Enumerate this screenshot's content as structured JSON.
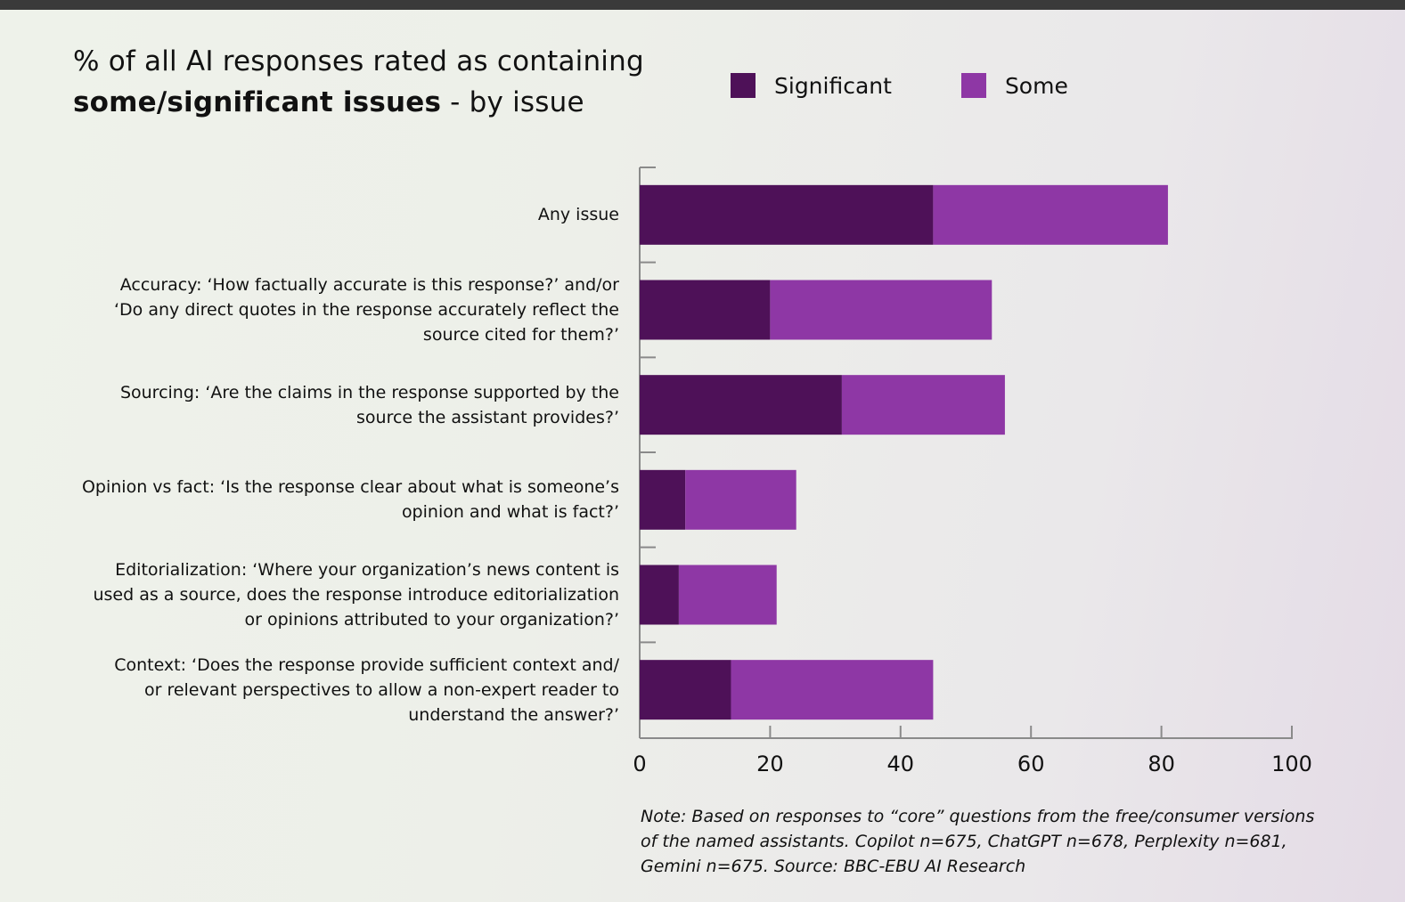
{
  "title": {
    "line1": "% of all AI responses rated as containing",
    "line2_bold": "some/significant issues",
    "line2_rest": " - by issue"
  },
  "colors": {
    "significant": "#4e1158",
    "some": "#8e37a5",
    "axis": "#8a8a8a"
  },
  "chart_data": {
    "type": "bar",
    "orientation": "horizontal",
    "stacked": true,
    "categories": [
      "Any issue",
      "Accuracy: ‘How factually accurate is this response?’ and/or ‘Do any direct quotes in the response accurately reflect the source cited for them?’",
      "Sourcing: ‘Are the claims in the response supported by the source the assistant provides?’",
      "Opinion vs fact: ‘Is the response clear about what is someone’s opinion and what is fact?’",
      "Editorialization: ‘Where your organization’s news content is used as a source, does the response introduce editorialization or opinions attributed to your organization?’",
      "Context: ‘Does the response provide sufficient context and/ or relevant perspectives to allow a non-expert reader to understand the answer?’"
    ],
    "category_lines": [
      [
        "Any issue"
      ],
      [
        "Accuracy: ‘How factually accurate is this response?’ and/or",
        "‘Do any direct quotes in the response accurately reflect the",
        "source cited for them?’"
      ],
      [
        "Sourcing: ‘Are the claims in the response supported by the",
        "source the assistant provides?’"
      ],
      [
        "Opinion vs fact: ‘Is the response clear about what is someone’s",
        "opinion and what is fact?’"
      ],
      [
        "Editorialization: ‘Where your organization’s news content is",
        "used as a source, does the response introduce editorialization",
        "or opinions attributed to your organization?’"
      ],
      [
        "Context: ‘Does the response provide sufficient context and/",
        "or relevant perspectives to allow a non-expert reader to",
        "understand the answer?’"
      ]
    ],
    "series": [
      {
        "name": "Significant",
        "values": [
          45,
          20,
          31,
          7,
          6,
          14
        ]
      },
      {
        "name": "Some",
        "values": [
          36,
          34,
          25,
          17,
          15,
          31
        ]
      }
    ],
    "xlim": [
      0,
      100
    ],
    "xticks": [
      0,
      20,
      40,
      60,
      80,
      100
    ],
    "xlabel": "",
    "ylabel": "",
    "legend": "top-right",
    "grid": false
  },
  "note": "Note: Based on responses to “core” questions from the free/consumer versions of the named assistants. Copilot n=675, ChatGPT n=678, Perplexity n=681, Gemini n=675. Source: BBC-EBU AI Research"
}
